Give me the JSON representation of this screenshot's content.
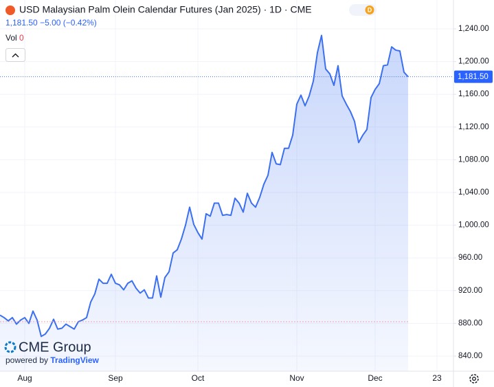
{
  "header": {
    "title": "USD Malaysian Palm Olein Calendar Futures (Jan 2025) · 1D · CME",
    "badge": "D",
    "price": "1,181.50",
    "change": "−5.00",
    "change_pct": "(−0.42%)",
    "vol_label": "Vol",
    "vol_value": "0"
  },
  "branding": {
    "logo": "CME Group",
    "powered_by": "powered by",
    "provider": "TradingView"
  },
  "chart_data": {
    "type": "area",
    "color": "#3b6ff0",
    "categories": [
      null,
      null,
      null,
      null,
      null,
      null,
      "Aug",
      null,
      null,
      null,
      null,
      null,
      null,
      null,
      null,
      null,
      null,
      null,
      null,
      null,
      null,
      null,
      null,
      null,
      null,
      null,
      null,
      null,
      "Sep",
      null,
      null,
      null,
      null,
      null,
      null,
      null,
      null,
      null,
      null,
      null,
      null,
      null,
      null,
      null,
      null,
      null,
      null,
      null,
      "Oct",
      null,
      null,
      null,
      null,
      null,
      null,
      null,
      null,
      null,
      null,
      null,
      null,
      null,
      null,
      null,
      null,
      null,
      null,
      null,
      null,
      null,
      null,
      null,
      "Nov",
      null,
      null,
      null,
      null,
      null,
      null,
      null,
      null,
      null,
      null,
      null,
      null,
      null,
      null,
      null,
      null,
      null,
      null,
      "Dec",
      null,
      null,
      null,
      null,
      null,
      null,
      null,
      null,
      null,
      null,
      null,
      null,
      null,
      null,
      "23"
    ],
    "values": [
      890,
      887,
      883,
      887,
      879,
      884,
      887,
      880,
      895,
      884,
      864,
      867,
      874,
      885,
      873,
      874,
      879,
      876,
      873,
      882,
      884,
      887,
      906,
      916,
      934,
      929,
      929,
      940,
      929,
      927,
      921,
      929,
      932,
      923,
      917,
      921,
      911,
      911,
      938,
      912,
      936,
      943,
      966,
      970,
      983,
      1000,
      1022,
      1001,
      991,
      983,
      1014,
      1011,
      1027,
      1027,
      1012,
      1013,
      1012,
      1033,
      1027,
      1016,
      1039,
      1027,
      1022,
      1034,
      1050,
      1061,
      1089,
      1075,
      1074,
      1094,
      1094,
      1110,
      1148,
      1159,
      1146,
      1158,
      1176,
      1211,
      1232,
      1191,
      1185,
      1171,
      1195,
      1158,
      1148,
      1139,
      1127,
      1101,
      1110,
      1117,
      1156,
      1166,
      1173,
      1195,
      1196,
      1218,
      1214,
      1213,
      1187,
      1181.5,
      null,
      null,
      null,
      null,
      null,
      null,
      null
    ],
    "last_label": "1,181.50",
    "baseline": 882,
    "ylim": [
      821.5,
      1275.3
    ],
    "yticks": [
      {
        "value": 840,
        "label": "840.00"
      },
      {
        "value": 880,
        "label": "880.00"
      },
      {
        "value": 920,
        "label": "920.00"
      },
      {
        "value": 960,
        "label": "960.00"
      },
      {
        "value": 1000,
        "label": "1,000.00"
      },
      {
        "value": 1040,
        "label": "1,040.00"
      },
      {
        "value": 1080,
        "label": "1,080.00"
      },
      {
        "value": 1120,
        "label": "1,120.00"
      },
      {
        "value": 1160,
        "label": "1,160.00"
      },
      {
        "value": 1200,
        "label": "1,200.00"
      },
      {
        "value": 1240,
        "label": "1,240.00"
      }
    ],
    "grid": true
  }
}
